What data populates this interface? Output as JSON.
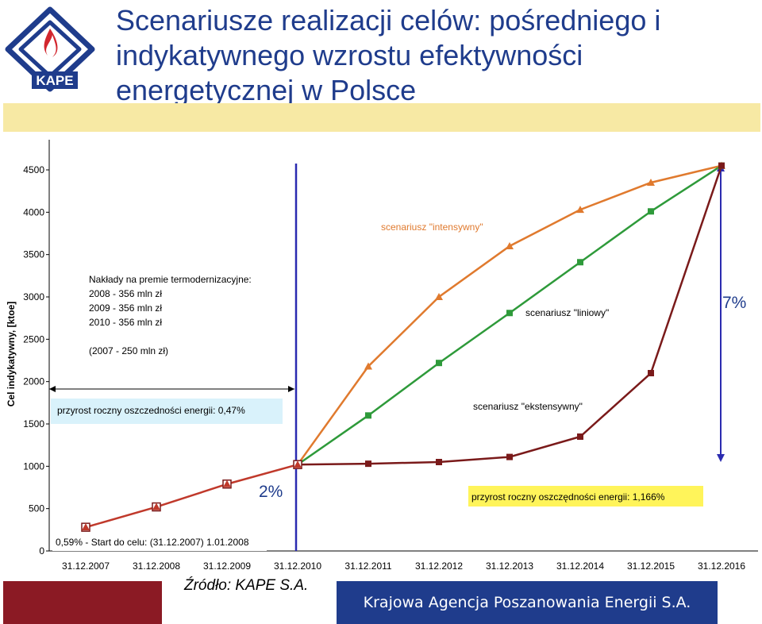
{
  "header": {
    "title": "Scenariusze realizacji celów: pośredniego i indykatywnego wzrostu efektywności energetycznej w Polsce",
    "logo_text": "KAPE"
  },
  "footer": {
    "source": "Źródło: KAPE S.A.",
    "organization": "Krajowa Agencja Poszanowania Energii S.A."
  },
  "colors": {
    "title": "#1f3c8c",
    "band": "#f7e9a4",
    "footer_bar": "#1f3c8c",
    "left_bar": "#8b1a24",
    "intensywny": "#e07a2e",
    "liniowy": "#2e9a3a",
    "ekstensywny": "#7a1a1a",
    "vline": "#2b2bb0"
  },
  "chart_data": {
    "type": "line",
    "ylabel": "Cel indykatywny, [ktoe]",
    "ylim": [
      0,
      4500
    ],
    "yticks": [
      0,
      500,
      1000,
      1500,
      2000,
      2500,
      3000,
      3500,
      4000,
      4500
    ],
    "categories": [
      "31.12.2007",
      "31.12.2008",
      "31.12.2009",
      "31.12.2010",
      "31.12.2011",
      "31.12.2012",
      "31.12.2013",
      "31.12.2014",
      "31.12.2015",
      "31.12.2016"
    ],
    "grid": false,
    "legend": "none",
    "series": [
      {
        "name": "scenariusz \"intensywny\"",
        "color": "#e07a2e",
        "marker": "triangle",
        "values": [
          null,
          null,
          null,
          1020,
          2180,
          3000,
          3600,
          4030,
          4350,
          4550
        ]
      },
      {
        "name": "scenariusz \"liniowy\"",
        "color": "#2e9a3a",
        "marker": "square",
        "values": [
          null,
          null,
          null,
          1020,
          1600,
          2220,
          2810,
          3410,
          4010,
          4550
        ]
      },
      {
        "name": "scenariusz \"ekstensywny\"",
        "color": "#7a1a1a",
        "marker": "square",
        "values": [
          null,
          null,
          null,
          1020,
          1030,
          1050,
          1110,
          1350,
          2100,
          4550
        ]
      },
      {
        "name": "",
        "color": "#c0392b",
        "marker": "triangle",
        "values": [
          280,
          520,
          790,
          1020,
          null,
          null,
          null,
          null,
          null,
          null
        ]
      }
    ],
    "annotations": {
      "premie": [
        "Nakłady na premie termodernizacyjne:",
        "2008 - 356 mln zł",
        "2009 - 356 mln zł",
        "2010 - 356 mln zł",
        "",
        "(2007 - 250 mln zł)"
      ],
      "przyrost_047": "przyrost roczny oszczedności energii: 0,47%",
      "intensywny_label": "scenariusz \"intensywny\"",
      "liniowy_label": "scenariusz \"liniowy\"",
      "ekstensywny_label": "scenariusz \"ekstensywny\"",
      "pct_7": "7%",
      "pct_2": "2%",
      "przyrost_1166": "przyrost roczny oszczędności energii: 1,166%",
      "start": "0,59% - Start do celu: (31.12.2007) 1.01.2008"
    }
  }
}
